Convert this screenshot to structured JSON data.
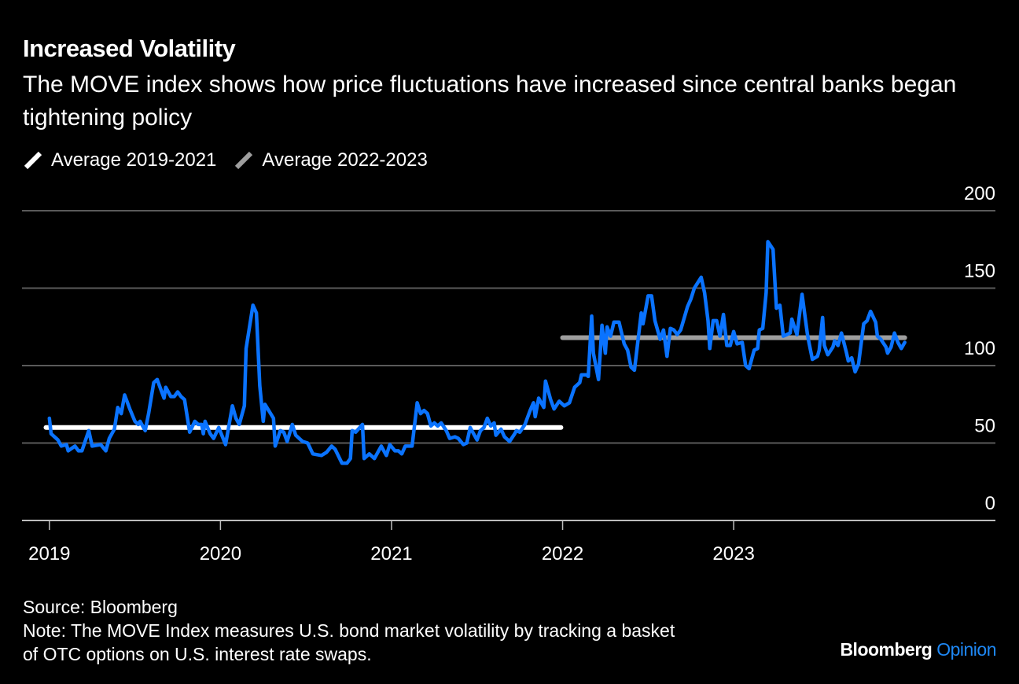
{
  "header": {
    "title": "Increased Volatility",
    "subtitle": "The MOVE index shows how price fluctuations have increased since central banks began tightening policy"
  },
  "legend": [
    {
      "label": "Average 2019-2021",
      "color": "#ffffff"
    },
    {
      "label": "Average 2022-2023",
      "color": "#9e9e9e"
    }
  ],
  "footer": {
    "source": "Source: Bloomberg",
    "note_line1": "Note: The MOVE Index measures U.S. bond market volatility by tracking a basket",
    "note_line2": "of OTC options on U.S. interest rate swaps.",
    "brand_primary": "Bloomberg",
    "brand_secondary": "Opinion"
  },
  "colors": {
    "background": "#000000",
    "series": "#0a73ff",
    "grid": "#5a5a5a",
    "axis": "#bdbdbd",
    "brand_accent": "#1e88f5"
  },
  "chart_data": {
    "type": "line",
    "title": "Increased Volatility",
    "xlabel": "",
    "ylabel": "",
    "x_ticks": [
      2019,
      2020,
      2021,
      2022,
      2023
    ],
    "x_tick_labels": [
      "2019",
      "2020",
      "2021",
      "2022",
      "2023"
    ],
    "xlim": [
      2018.84,
      2024.53
    ],
    "y_ticks": [
      0,
      50,
      100,
      150,
      200
    ],
    "y_tick_labels": [
      "0",
      "50",
      "100",
      "150",
      "200"
    ],
    "ylim": [
      0,
      200
    ],
    "y_axis_side": "right",
    "grid": true,
    "legend_position": "top-left",
    "series": [
      {
        "name": "MOVE Index",
        "color": "#0a73ff",
        "points": [
          [
            2019.0,
            66
          ],
          [
            2019.01,
            56
          ],
          [
            2019.05,
            52
          ],
          [
            2019.07,
            48
          ],
          [
            2019.1,
            49
          ],
          [
            2019.11,
            45
          ],
          [
            2019.15,
            48
          ],
          [
            2019.17,
            45
          ],
          [
            2019.19,
            45
          ],
          [
            2019.23,
            58
          ],
          [
            2019.25,
            48
          ],
          [
            2019.3,
            49
          ],
          [
            2019.33,
            45
          ],
          [
            2019.35,
            53
          ],
          [
            2019.38,
            59
          ],
          [
            2019.4,
            73
          ],
          [
            2019.42,
            69
          ],
          [
            2019.44,
            81
          ],
          [
            2019.47,
            72
          ],
          [
            2019.5,
            64
          ],
          [
            2019.52,
            62
          ],
          [
            2019.53,
            64
          ],
          [
            2019.56,
            58
          ],
          [
            2019.58,
            69
          ],
          [
            2019.61,
            89
          ],
          [
            2019.63,
            91
          ],
          [
            2019.67,
            79
          ],
          [
            2019.68,
            86
          ],
          [
            2019.71,
            80
          ],
          [
            2019.73,
            80
          ],
          [
            2019.75,
            83
          ],
          [
            2019.77,
            80
          ],
          [
            2019.79,
            78
          ],
          [
            2019.82,
            57
          ],
          [
            2019.85,
            64
          ],
          [
            2019.87,
            62
          ],
          [
            2019.89,
            62
          ],
          [
            2019.9,
            56
          ],
          [
            2019.91,
            64
          ],
          [
            2019.94,
            56
          ],
          [
            2019.96,
            53
          ],
          [
            2019.99,
            60
          ],
          [
            2020.03,
            49
          ],
          [
            2020.07,
            74
          ],
          [
            2020.09,
            66
          ],
          [
            2020.11,
            62
          ],
          [
            2020.14,
            74
          ],
          [
            2020.15,
            111
          ],
          [
            2020.19,
            139
          ],
          [
            2020.21,
            134
          ],
          [
            2020.23,
            87
          ],
          [
            2020.25,
            64
          ],
          [
            2020.26,
            75
          ],
          [
            2020.31,
            66
          ],
          [
            2020.32,
            48
          ],
          [
            2020.35,
            58
          ],
          [
            2020.37,
            57
          ],
          [
            2020.39,
            51
          ],
          [
            2020.42,
            62
          ],
          [
            2020.44,
            55
          ],
          [
            2020.48,
            51
          ],
          [
            2020.51,
            50
          ],
          [
            2020.54,
            43
          ],
          [
            2020.59,
            42
          ],
          [
            2020.62,
            44
          ],
          [
            2020.65,
            48
          ],
          [
            2020.67,
            46
          ],
          [
            2020.71,
            37
          ],
          [
            2020.74,
            37
          ],
          [
            2020.76,
            40
          ],
          [
            2020.77,
            58
          ],
          [
            2020.79,
            57
          ],
          [
            2020.83,
            62
          ],
          [
            2020.84,
            40
          ],
          [
            2020.87,
            43
          ],
          [
            2020.9,
            40
          ],
          [
            2020.94,
            48
          ],
          [
            2020.97,
            42
          ],
          [
            2020.99,
            49
          ],
          [
            2021.02,
            45
          ],
          [
            2021.04,
            45
          ],
          [
            2021.06,
            43
          ],
          [
            2021.08,
            48
          ],
          [
            2021.12,
            48
          ],
          [
            2021.15,
            76
          ],
          [
            2021.17,
            69
          ],
          [
            2021.19,
            71
          ],
          [
            2021.21,
            69
          ],
          [
            2021.23,
            61
          ],
          [
            2021.25,
            63
          ],
          [
            2021.27,
            61
          ],
          [
            2021.29,
            63
          ],
          [
            2021.32,
            58
          ],
          [
            2021.34,
            53
          ],
          [
            2021.37,
            54
          ],
          [
            2021.39,
            53
          ],
          [
            2021.42,
            49
          ],
          [
            2021.44,
            50
          ],
          [
            2021.46,
            60
          ],
          [
            2021.5,
            52
          ],
          [
            2021.52,
            58
          ],
          [
            2021.54,
            60
          ],
          [
            2021.56,
            66
          ],
          [
            2021.58,
            61
          ],
          [
            2021.6,
            63
          ],
          [
            2021.61,
            55
          ],
          [
            2021.64,
            59
          ],
          [
            2021.66,
            54
          ],
          [
            2021.69,
            51
          ],
          [
            2021.72,
            56
          ],
          [
            2021.73,
            58
          ],
          [
            2021.75,
            57
          ],
          [
            2021.78,
            62
          ],
          [
            2021.81,
            71
          ],
          [
            2021.83,
            76
          ],
          [
            2021.84,
            67
          ],
          [
            2021.86,
            79
          ],
          [
            2021.89,
            73
          ],
          [
            2021.9,
            90
          ],
          [
            2021.93,
            78
          ],
          [
            2021.95,
            72
          ],
          [
            2021.98,
            77
          ],
          [
            2022.01,
            74
          ],
          [
            2022.04,
            76
          ],
          [
            2022.07,
            86
          ],
          [
            2022.1,
            89
          ],
          [
            2022.11,
            94
          ],
          [
            2022.14,
            94
          ],
          [
            2022.15,
            93
          ],
          [
            2022.17,
            132
          ],
          [
            2022.18,
            108
          ],
          [
            2022.21,
            91
          ],
          [
            2022.23,
            126
          ],
          [
            2022.25,
            108
          ],
          [
            2022.26,
            125
          ],
          [
            2022.28,
            119
          ],
          [
            2022.3,
            128
          ],
          [
            2022.33,
            128
          ],
          [
            2022.36,
            114
          ],
          [
            2022.38,
            110
          ],
          [
            2022.4,
            99
          ],
          [
            2022.42,
            97
          ],
          [
            2022.46,
            134
          ],
          [
            2022.47,
            127
          ],
          [
            2022.5,
            145
          ],
          [
            2022.52,
            145
          ],
          [
            2022.54,
            129
          ],
          [
            2022.57,
            117
          ],
          [
            2022.59,
            123
          ],
          [
            2022.61,
            106
          ],
          [
            2022.63,
            124
          ],
          [
            2022.65,
            123
          ],
          [
            2022.67,
            120
          ],
          [
            2022.69,
            123
          ],
          [
            2022.73,
            138
          ],
          [
            2022.75,
            143
          ],
          [
            2022.77,
            150
          ],
          [
            2022.81,
            157
          ],
          [
            2022.83,
            147
          ],
          [
            2022.85,
            129
          ],
          [
            2022.86,
            111
          ],
          [
            2022.88,
            129
          ],
          [
            2022.9,
            129
          ],
          [
            2022.92,
            119
          ],
          [
            2022.94,
            133
          ],
          [
            2022.96,
            113
          ],
          [
            2022.98,
            113
          ],
          [
            2023.0,
            122
          ],
          [
            2023.02,
            114
          ],
          [
            2023.05,
            115
          ],
          [
            2023.07,
            100
          ],
          [
            2023.09,
            98
          ],
          [
            2023.12,
            110
          ],
          [
            2023.14,
            111
          ],
          [
            2023.15,
            123
          ],
          [
            2023.17,
            124
          ],
          [
            2023.19,
            147
          ],
          [
            2023.2,
            180
          ],
          [
            2023.23,
            175
          ],
          [
            2023.25,
            137
          ],
          [
            2023.27,
            139
          ],
          [
            2023.29,
            119
          ],
          [
            2023.31,
            120
          ],
          [
            2023.33,
            121
          ],
          [
            2023.34,
            130
          ],
          [
            2023.37,
            120
          ],
          [
            2023.4,
            146
          ],
          [
            2023.43,
            121
          ],
          [
            2023.44,
            115
          ],
          [
            2023.46,
            104
          ],
          [
            2023.49,
            106
          ],
          [
            2023.5,
            110
          ],
          [
            2023.52,
            131
          ],
          [
            2023.53,
            113
          ],
          [
            2023.55,
            107
          ],
          [
            2023.58,
            112
          ],
          [
            2023.59,
            116
          ],
          [
            2023.61,
            113
          ],
          [
            2023.63,
            121
          ],
          [
            2023.66,
            108
          ],
          [
            2023.67,
            103
          ],
          [
            2023.69,
            105
          ],
          [
            2023.71,
            96
          ],
          [
            2023.73,
            101
          ],
          [
            2023.76,
            127
          ],
          [
            2023.78,
            129
          ],
          [
            2023.8,
            135
          ],
          [
            2023.83,
            128
          ],
          [
            2023.84,
            119
          ],
          [
            2023.86,
            117
          ],
          [
            2023.89,
            112
          ],
          [
            2023.9,
            108
          ],
          [
            2023.92,
            112
          ],
          [
            2023.94,
            121
          ],
          [
            2023.96,
            115
          ],
          [
            2023.98,
            111
          ],
          [
            2024.0,
            115
          ]
        ]
      },
      {
        "name": "Average 2019-2021",
        "color": "#ffffff",
        "points": [
          [
            2018.98,
            60
          ],
          [
            2021.99,
            60
          ]
        ]
      },
      {
        "name": "Average 2022-2023",
        "color": "#9e9e9e",
        "points": [
          [
            2022.0,
            118
          ],
          [
            2024.0,
            118
          ]
        ]
      }
    ]
  }
}
